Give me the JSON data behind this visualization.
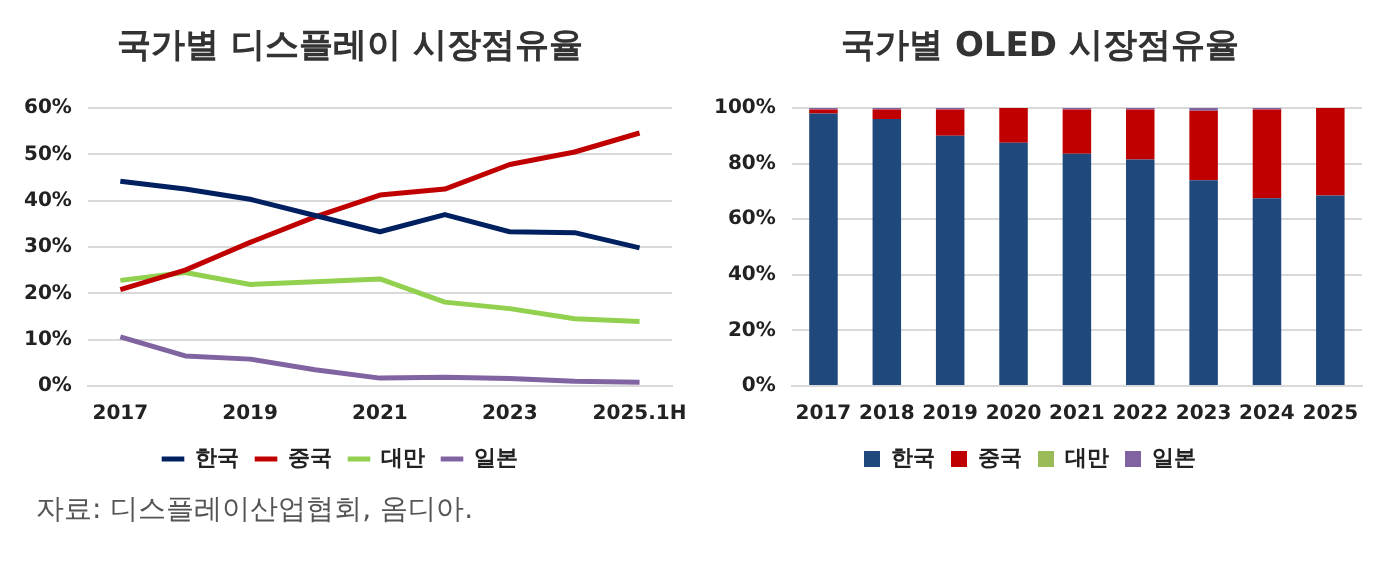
{
  "chart_data": [
    {
      "type": "line",
      "title": "국가별 디스플레이 시장점유율",
      "categories": [
        "2017",
        null,
        "2019",
        null,
        "2021",
        null,
        "2023",
        null,
        "2025.1H"
      ],
      "series": [
        {
          "name": "한국",
          "color": "#002060",
          "values": [
            44.2,
            42.5,
            40.3,
            36.8,
            33.3,
            37,
            33.3,
            33.1,
            29.8
          ]
        },
        {
          "name": "중국",
          "color": "#c00000",
          "values": [
            20.8,
            25,
            31,
            36.5,
            41.2,
            42.5,
            47.8,
            50.5,
            54.6
          ]
        },
        {
          "name": "대만",
          "color": "#92d050",
          "values": [
            22.8,
            24.5,
            21.9,
            22.5,
            23.1,
            18.1,
            16.7,
            14.5,
            13.9
          ]
        },
        {
          "name": "일본",
          "color": "#8064a2",
          "values": [
            10.6,
            6.5,
            5.8,
            3.5,
            1.7,
            1.9,
            1.6,
            1.0,
            0.8
          ]
        }
      ],
      "ylim": [
        0,
        60
      ],
      "yticks": [
        {
          "value": 0,
          "label": "0%"
        },
        {
          "value": 10,
          "label": "10%"
        },
        {
          "value": 20,
          "label": "20%"
        },
        {
          "value": 30,
          "label": "30%"
        },
        {
          "value": 40,
          "label": "40%"
        },
        {
          "value": 50,
          "label": "50%"
        },
        {
          "value": 60,
          "label": "60%"
        }
      ],
      "grid": "y",
      "legend": "bottom",
      "marker": "none",
      "line_style": "solid",
      "annotations": [
        "자료: 디스플레이산업협회, 옴디아."
      ]
    },
    {
      "type": "bar",
      "title": "국가별 OLED 시장점유율",
      "categories": [
        "2017",
        "2018",
        "2019",
        "2020",
        "2021",
        "2022",
        "2023",
        "2024",
        "2025"
      ],
      "stacked": true,
      "series": [
        {
          "name": "한국",
          "color": "#1f497d",
          "values": [
            98,
            96,
            90,
            87.5,
            83.5,
            81.5,
            74,
            67.5,
            68.5
          ]
        },
        {
          "name": "중국",
          "color": "#c00000",
          "values": [
            1.5,
            3.5,
            9.5,
            12.5,
            16,
            18,
            25,
            32,
            31.5
          ]
        },
        {
          "name": "대만",
          "color": "#9bbb59",
          "values": [
            0,
            0,
            0,
            0,
            0,
            0,
            0,
            0,
            0
          ]
        },
        {
          "name": "일본",
          "color": "#8064a2",
          "values": [
            0.5,
            0.5,
            0.5,
            0,
            0.5,
            0.5,
            1,
            0.5,
            0
          ]
        }
      ],
      "ylim": [
        0,
        100
      ],
      "yticks": [
        {
          "value": 0,
          "label": "0%"
        },
        {
          "value": 20,
          "label": "20%"
        },
        {
          "value": 40,
          "label": "40%"
        },
        {
          "value": 60,
          "label": "60%"
        },
        {
          "value": 80,
          "label": "80%"
        },
        {
          "value": 100,
          "label": "100%"
        }
      ],
      "grid": "y",
      "legend": "bottom"
    }
  ]
}
